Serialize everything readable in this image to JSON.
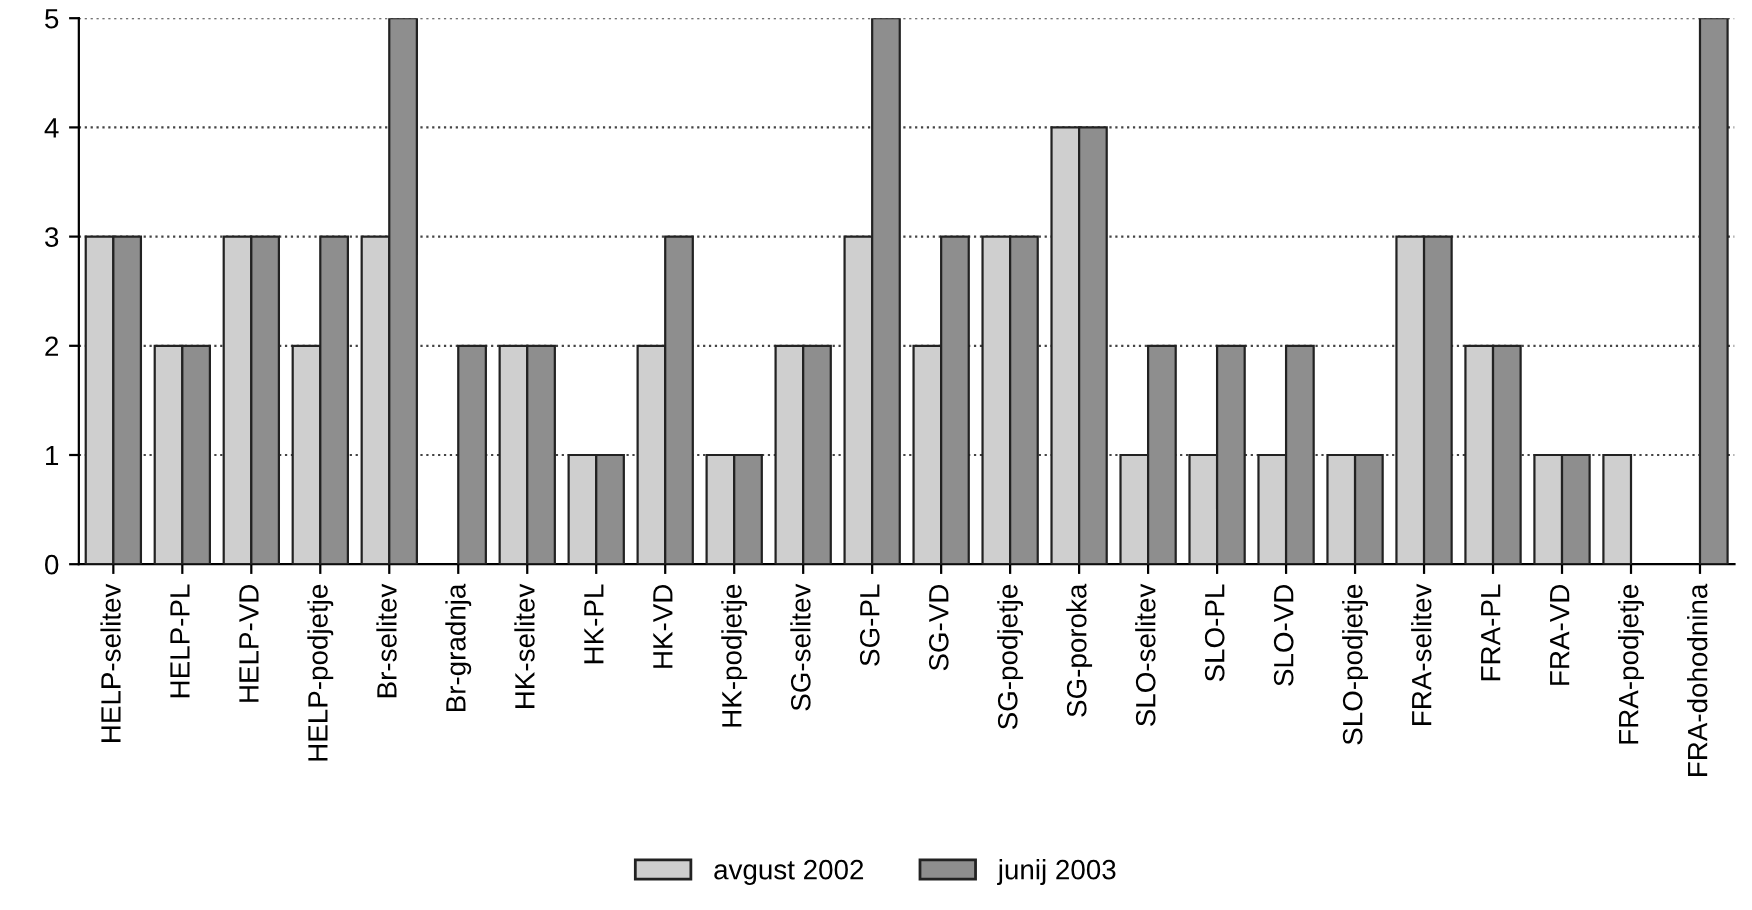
{
  "chart_data": {
    "type": "bar",
    "categories": [
      "HELP-selitev",
      "HELP-PL",
      "HELP-VD",
      "HELP-podjetje",
      "Br-selitev",
      "Br-gradnja",
      "HK-selitev",
      "HK-PL",
      "HK-VD",
      "HK-podjetje",
      "SG-selitev",
      "SG-PL",
      "SG-VD",
      "SG-podjetje",
      "SG-poroka",
      "SLO-selitev",
      "SLO-PL",
      "SLO-VD",
      "SLO-podjetje",
      "FRA-selitev",
      "FRA-PL",
      "FRA-VD",
      "FRA-podjetje",
      "FRA-dohodnina"
    ],
    "series": [
      {
        "name": "avgust 2002",
        "color": "#cfcfcf",
        "values": [
          3,
          2,
          3,
          2,
          3,
          null,
          2,
          1,
          2,
          1,
          2,
          3,
          2,
          3,
          4,
          1,
          1,
          1,
          1,
          3,
          2,
          1,
          1,
          null
        ]
      },
      {
        "name": "junij 2003",
        "color": "#8e8e8e",
        "values": [
          3,
          2,
          3,
          3,
          5,
          2,
          2,
          1,
          3,
          1,
          2,
          5,
          3,
          3,
          4,
          2,
          2,
          2,
          1,
          3,
          2,
          1,
          null,
          5
        ]
      }
    ],
    "ylim": [
      0,
      5
    ],
    "yticks": [
      0,
      1,
      2,
      3,
      4,
      5
    ],
    "grid": "y",
    "legend": "bottom"
  }
}
